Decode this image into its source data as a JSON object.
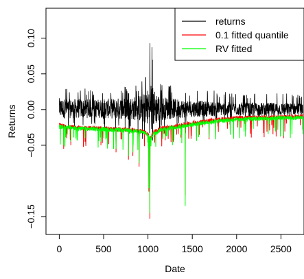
{
  "chart_data": {
    "type": "line",
    "title": "",
    "xlabel": "Date",
    "ylabel": "Returns",
    "xlim": [
      -150,
      2760
    ],
    "ylim": [
      -0.175,
      0.142
    ],
    "x_ticks": [
      0,
      500,
      1000,
      1500,
      2000,
      2500
    ],
    "y_ticks": [
      -0.15,
      -0.05,
      0.0,
      0.05,
      0.1
    ],
    "y_tick_labels": [
      "−0.15",
      "−0.05",
      "0.00",
      "0.05",
      "0.10"
    ],
    "n_points": 2750,
    "legend": {
      "position": "top-right",
      "entries": [
        {
          "label": "returns",
          "color": "#000000"
        },
        {
          "label": "0.1 fitted quantile",
          "color": "#ff0000"
        },
        {
          "label": "RV fitted",
          "color": "#00ff00"
        }
      ]
    },
    "series": [
      {
        "name": "returns",
        "color": "#000000",
        "envelope": {
          "x": [
            0,
            100,
            250,
            400,
            550,
            700,
            850,
            950,
            1000,
            1030,
            1060,
            1150,
            1300,
            1450,
            1600,
            1800,
            2000,
            2200,
            2400,
            2600,
            2750
          ],
          "high": [
            0.04,
            0.032,
            0.03,
            0.028,
            0.03,
            0.032,
            0.035,
            0.045,
            0.06,
            0.112,
            0.07,
            0.04,
            0.032,
            0.03,
            0.028,
            0.026,
            0.025,
            0.024,
            0.024,
            0.023,
            0.022
          ],
          "low": [
            -0.025,
            -0.028,
            -0.03,
            -0.03,
            -0.032,
            -0.035,
            -0.04,
            -0.045,
            -0.06,
            -0.08,
            -0.05,
            -0.035,
            -0.03,
            -0.025,
            -0.022,
            -0.018,
            -0.016,
            -0.015,
            -0.015,
            -0.014,
            -0.013
          ]
        }
      },
      {
        "name": "0.1 fitted quantile",
        "color": "#ff0000",
        "baseline": {
          "x": [
            0,
            100,
            250,
            400,
            550,
            700,
            850,
            950,
            1000,
            1030,
            1060,
            1150,
            1300,
            1450,
            1600,
            1800,
            2000,
            2200,
            2400,
            2600,
            2750
          ],
          "y": [
            -0.022,
            -0.024,
            -0.026,
            -0.026,
            -0.027,
            -0.028,
            -0.029,
            -0.031,
            -0.035,
            -0.04,
            -0.032,
            -0.026,
            -0.024,
            -0.02,
            -0.017,
            -0.014,
            -0.012,
            -0.011,
            -0.011,
            -0.01,
            -0.009
          ]
        },
        "spikes": [
          [
            50,
            -0.055
          ],
          [
            130,
            -0.05
          ],
          [
            290,
            -0.045
          ],
          [
            470,
            -0.05
          ],
          [
            640,
            -0.06
          ],
          [
            780,
            -0.07
          ],
          [
            830,
            -0.065
          ],
          [
            900,
            -0.08
          ],
          [
            1010,
            -0.115
          ],
          [
            1022,
            -0.153
          ],
          [
            1420,
            -0.12
          ],
          [
            2530,
            -0.04
          ]
        ]
      },
      {
        "name": "RV fitted",
        "color": "#00ff00",
        "baseline": {
          "x": [
            0,
            100,
            250,
            400,
            550,
            700,
            850,
            950,
            1000,
            1030,
            1060,
            1150,
            1300,
            1450,
            1600,
            1800,
            2000,
            2200,
            2400,
            2600,
            2750
          ],
          "y": [
            -0.024,
            -0.025,
            -0.027,
            -0.027,
            -0.028,
            -0.029,
            -0.03,
            -0.032,
            -0.036,
            -0.042,
            -0.034,
            -0.028,
            -0.025,
            -0.022,
            -0.019,
            -0.016,
            -0.014,
            -0.013,
            -0.012,
            -0.012,
            -0.011
          ]
        },
        "spikes": [
          [
            50,
            -0.05
          ],
          [
            130,
            -0.045
          ],
          [
            290,
            -0.04
          ],
          [
            470,
            -0.045
          ],
          [
            640,
            -0.055
          ],
          [
            780,
            -0.065
          ],
          [
            830,
            -0.06
          ],
          [
            900,
            -0.075
          ],
          [
            1010,
            -0.11
          ],
          [
            1022,
            -0.145
          ],
          [
            1420,
            -0.135
          ],
          [
            2530,
            -0.037
          ]
        ]
      }
    ]
  }
}
